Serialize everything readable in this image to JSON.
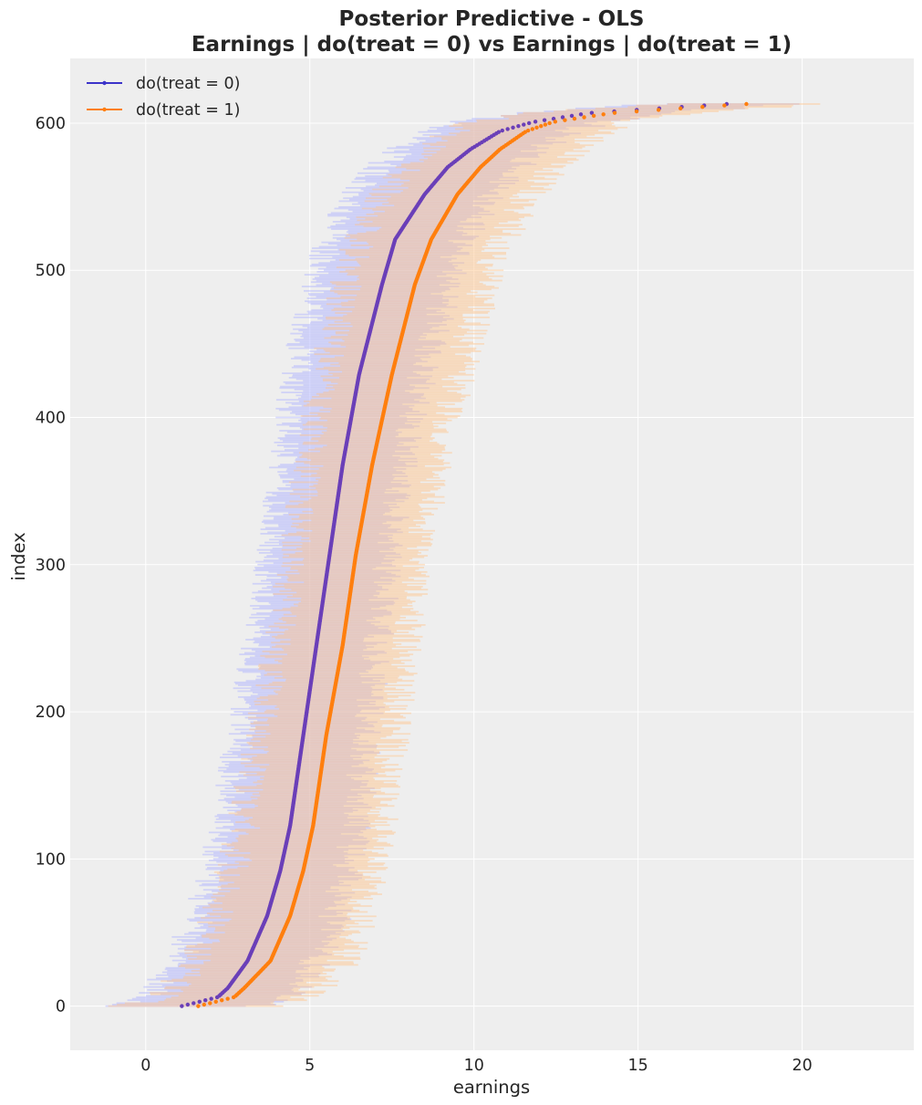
{
  "chart_data": {
    "type": "scatter",
    "title": "Posterior Predictive - OLS",
    "subtitle": "Earnings | do(treat = 0) vs Earnings | do(treat = 1)",
    "xlabel": "earnings",
    "ylabel": "index",
    "xlim": [
      -2.3,
      23.4
    ],
    "ylim": [
      -30,
      644
    ],
    "xticks": [
      0,
      5,
      10,
      15,
      20
    ],
    "yticks": [
      0,
      100,
      200,
      300,
      400,
      500,
      600
    ],
    "grid": true,
    "legend_position": "top-left",
    "n_points": 614,
    "series": [
      {
        "name": "do(treat = 0)",
        "color": "#3b33c9",
        "point_color": "#6a3fb8",
        "band_color": "#aab0ff",
        "quantiles": [
          0,
          0.01,
          0.02,
          0.05,
          0.1,
          0.15,
          0.2,
          0.3,
          0.4,
          0.5,
          0.6,
          0.7,
          0.8,
          0.85,
          0.9,
          0.93,
          0.95,
          0.97,
          0.98,
          0.99,
          1.0
        ],
        "mean_earnings_at_quantile": [
          1.1,
          2.2,
          2.5,
          3.1,
          3.7,
          4.1,
          4.4,
          4.8,
          5.2,
          5.6,
          6.0,
          6.5,
          7.2,
          7.6,
          8.5,
          9.2,
          9.9,
          10.8,
          11.8,
          13.5,
          17.7
        ],
        "interval_halfwidth": 1.8
      },
      {
        "name": "do(treat = 1)",
        "color": "#ff7f0e",
        "point_color": "#ff7f0e",
        "band_color": "#ffc38a",
        "quantiles": [
          0,
          0.01,
          0.02,
          0.05,
          0.1,
          0.15,
          0.2,
          0.3,
          0.4,
          0.5,
          0.6,
          0.7,
          0.8,
          0.85,
          0.9,
          0.93,
          0.95,
          0.97,
          0.98,
          0.99,
          1.0
        ],
        "mean_earnings_at_quantile": [
          1.6,
          2.7,
          3.0,
          3.8,
          4.4,
          4.8,
          5.1,
          5.5,
          6.0,
          6.4,
          6.9,
          7.5,
          8.2,
          8.7,
          9.5,
          10.2,
          10.8,
          11.6,
          12.4,
          14.2,
          18.3
        ],
        "interval_halfwidth": 1.9
      }
    ]
  }
}
